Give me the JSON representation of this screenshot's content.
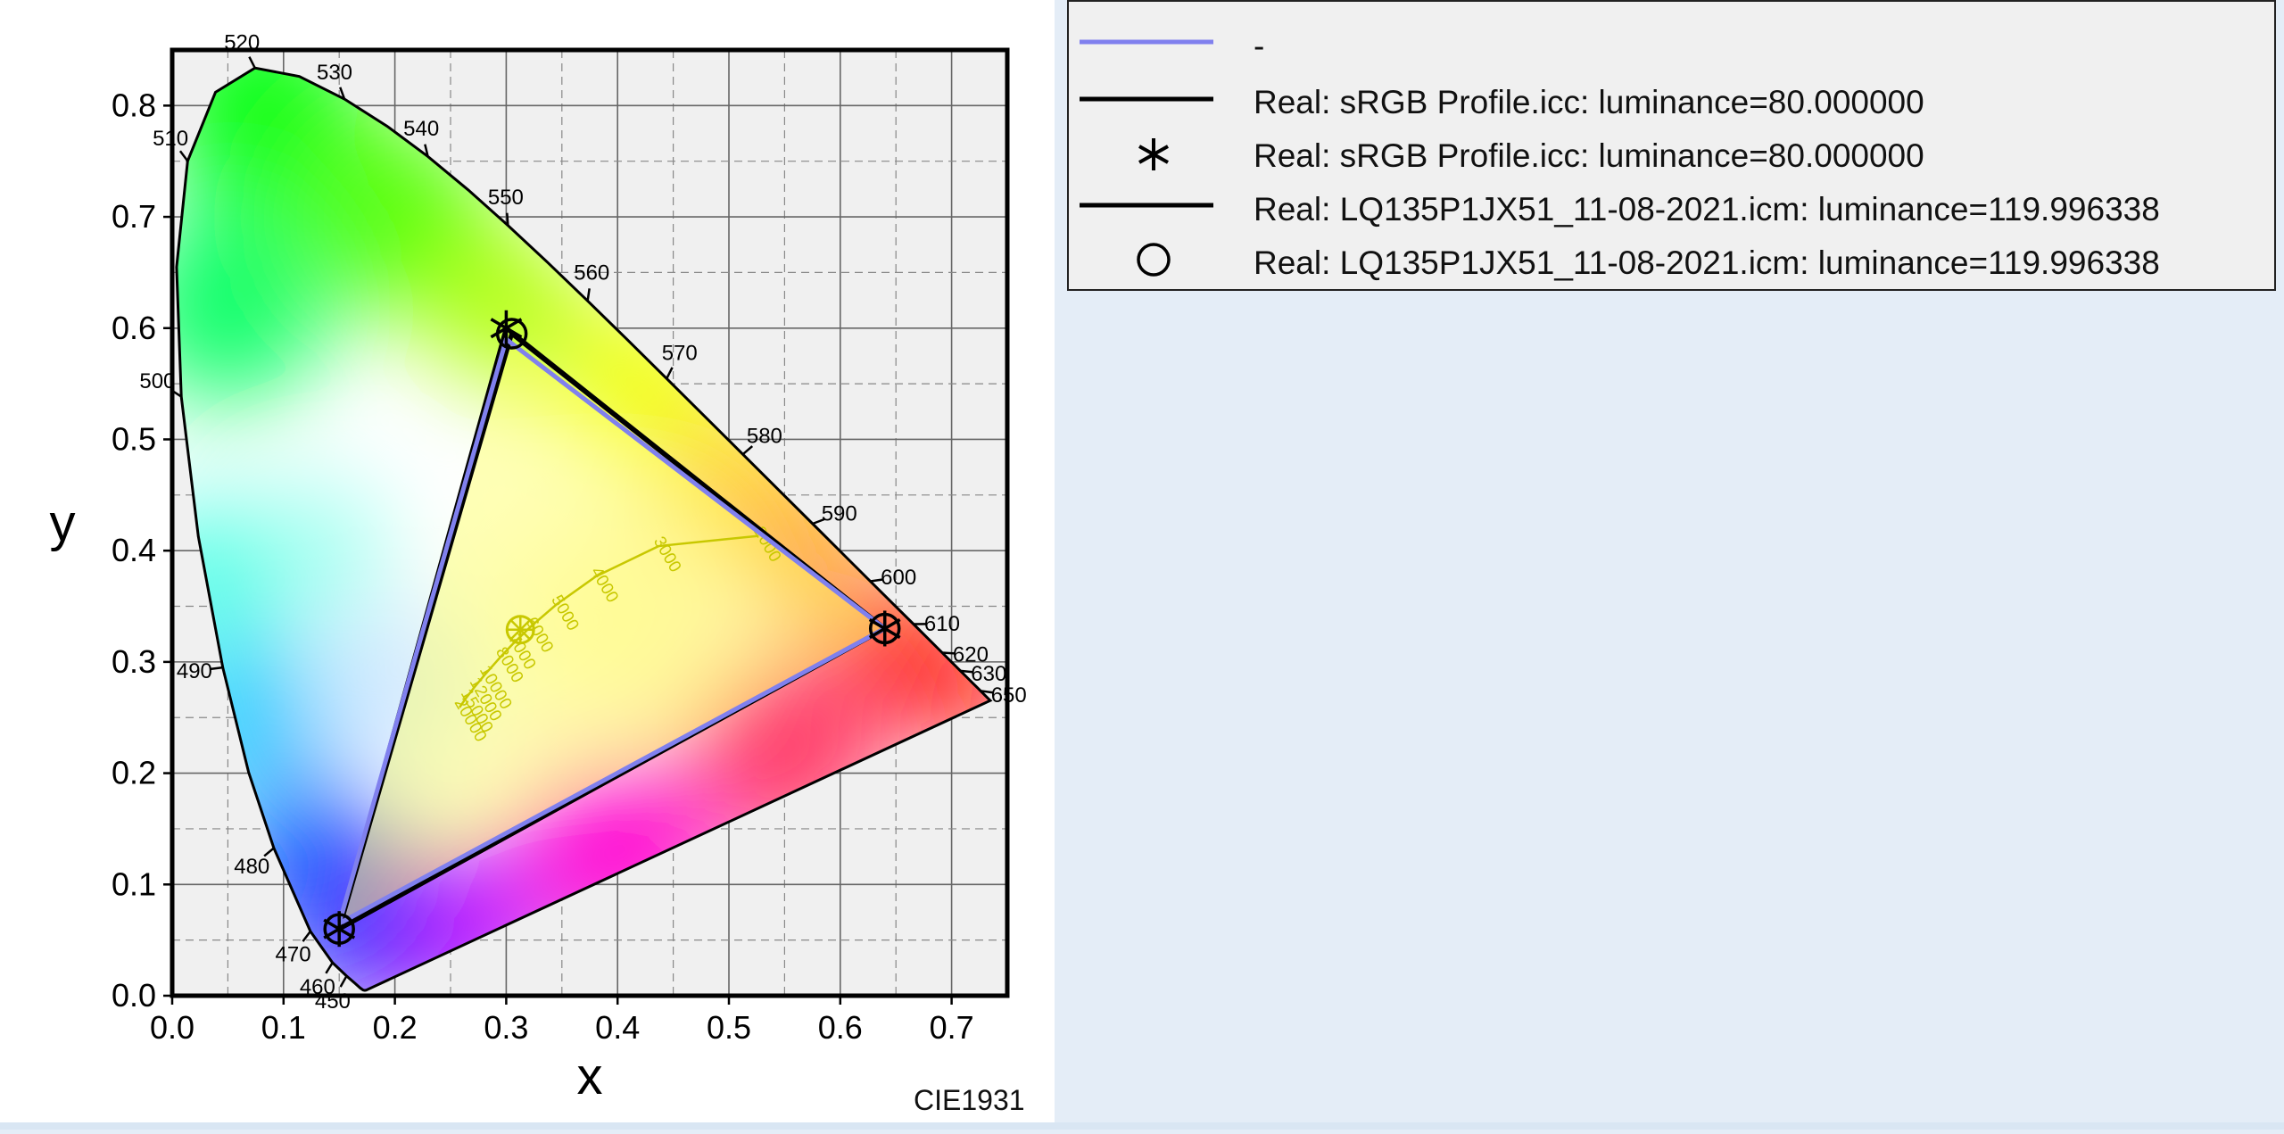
{
  "chart_data": {
    "type": "scatter",
    "title": "",
    "xlabel": "x",
    "ylabel": "y",
    "xlim": [
      0.0,
      0.75
    ],
    "ylim": [
      0.0,
      0.85
    ],
    "xticks": [
      0.0,
      0.1,
      0.2,
      0.3,
      0.4,
      0.5,
      0.6,
      0.7
    ],
    "yticks": [
      0.0,
      0.1,
      0.2,
      0.3,
      0.4,
      0.5,
      0.6,
      0.7,
      0.8
    ],
    "xtick_labels": [
      "0.0",
      "0.1",
      "0.2",
      "0.3",
      "0.4",
      "0.5",
      "0.6",
      "0.7"
    ],
    "ytick_labels": [
      "0.0",
      "0.1",
      "0.2",
      "0.3",
      "0.4",
      "0.5",
      "0.6",
      "0.7",
      "0.8"
    ],
    "grid": true,
    "footer_label": "CIE1931",
    "spectral_locus": {
      "labels": [
        {
          "nm": "450",
          "x": 0.1566,
          "y": 0.0177
        },
        {
          "nm": "460",
          "x": 0.144,
          "y": 0.0297
        },
        {
          "nm": "470",
          "x": 0.1241,
          "y": 0.0578
        },
        {
          "nm": "480",
          "x": 0.0913,
          "y": 0.1327
        },
        {
          "nm": "490",
          "x": 0.0454,
          "y": 0.295
        },
        {
          "nm": "500",
          "x": 0.0082,
          "y": 0.5384
        },
        {
          "nm": "510",
          "x": 0.0139,
          "y": 0.7502
        },
        {
          "nm": "520",
          "x": 0.0743,
          "y": 0.8338
        },
        {
          "nm": "530",
          "x": 0.1547,
          "y": 0.8059
        },
        {
          "nm": "540",
          "x": 0.2296,
          "y": 0.7543
        },
        {
          "nm": "550",
          "x": 0.3016,
          "y": 0.6923
        },
        {
          "nm": "560",
          "x": 0.3731,
          "y": 0.6245
        },
        {
          "nm": "570",
          "x": 0.4441,
          "y": 0.5547
        },
        {
          "nm": "580",
          "x": 0.5125,
          "y": 0.4866
        },
        {
          "nm": "590",
          "x": 0.5752,
          "y": 0.4242
        },
        {
          "nm": "600",
          "x": 0.627,
          "y": 0.3725
        },
        {
          "nm": "610",
          "x": 0.6658,
          "y": 0.334
        },
        {
          "nm": "620",
          "x": 0.6915,
          "y": 0.3083
        },
        {
          "nm": "630",
          "x": 0.7079,
          "y": 0.292
        },
        {
          "nm": "650",
          "x": 0.726,
          "y": 0.274
        }
      ]
    },
    "planckian_locus": {
      "labels": [
        "2000",
        "3000",
        "4000",
        "5000",
        "6000",
        "7000",
        "8000",
        "10000",
        "12000",
        "15000",
        "20000"
      ]
    },
    "white_point": {
      "x": 0.3127,
      "y": 0.329
    },
    "series": [
      {
        "name": "-",
        "color": "#8080ee",
        "marker": "none",
        "points": [
          [
            0.64,
            0.33
          ],
          [
            0.3,
            0.59
          ],
          [
            0.15,
            0.065
          ],
          [
            0.64,
            0.33
          ]
        ]
      },
      {
        "name": "Real: sRGB Profile.icc: luminance=80.000000",
        "color": "#000000",
        "marker": "line",
        "points": [
          [
            0.64,
            0.33
          ],
          [
            0.3,
            0.6
          ],
          [
            0.15,
            0.06
          ],
          [
            0.64,
            0.33
          ]
        ]
      },
      {
        "name": "Real: sRGB Profile.icc: luminance=80.000000",
        "color": "#000000",
        "marker": "asterisk",
        "points": [
          [
            0.64,
            0.33
          ],
          [
            0.3,
            0.6
          ],
          [
            0.15,
            0.06
          ]
        ]
      },
      {
        "name": "Real: LQ135P1JX51_11-08-2021.icm: luminance=119.996338",
        "color": "#000000",
        "marker": "line",
        "points": [
          [
            0.64,
            0.33
          ],
          [
            0.305,
            0.595
          ],
          [
            0.15,
            0.06
          ],
          [
            0.64,
            0.33
          ]
        ]
      },
      {
        "name": "Real: LQ135P1JX51_11-08-2021.icm: luminance=119.996338",
        "color": "#000000",
        "marker": "circle",
        "points": [
          [
            0.64,
            0.33
          ],
          [
            0.305,
            0.595
          ],
          [
            0.15,
            0.06
          ]
        ]
      }
    ],
    "legend_placement": "top-right, outside plot"
  }
}
